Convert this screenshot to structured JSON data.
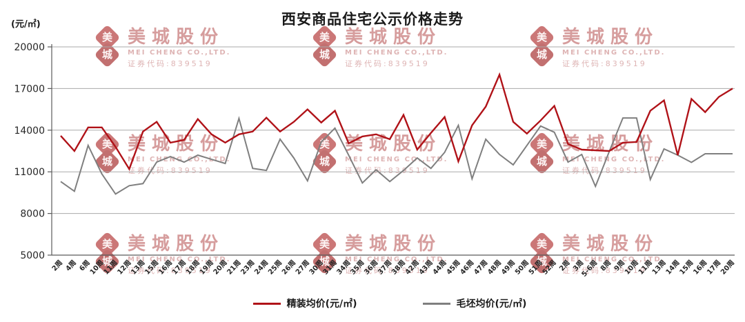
{
  "chart": {
    "title": "西安商品住宅公示价格走势",
    "y_axis_unit": "(元/㎡)"
  },
  "legend": {
    "items": [
      {
        "label": "精装均价(元/㎡)",
        "color": "#b01218"
      },
      {
        "label": "毛坯均价(元/㎡)",
        "color": "#7f7f7f"
      }
    ]
  },
  "watermark": {
    "logo_top_char": "美",
    "logo_bottom_char": "城",
    "company_cn": "美城股份",
    "company_en": "MEI CHENG CO.,LTD.",
    "stock_code": "证券代码:839519",
    "color": "#d08d8d"
  },
  "chart_data": {
    "type": "line",
    "title": "西安商品住宅公示价格走势",
    "xlabel": "",
    "ylabel": "(元/㎡)",
    "ylim": [
      5000,
      20000
    ],
    "yticks": [
      5000,
      8000,
      11000,
      14000,
      17000,
      20000
    ],
    "grid": true,
    "legend_position": "bottom",
    "categories": [
      "2周",
      "4周",
      "6周",
      "10周",
      "11周",
      "12周",
      "13周",
      "15周",
      "16周",
      "17周",
      "18周",
      "19周",
      "20周",
      "21周",
      "23周",
      "24周",
      "25周",
      "26周",
      "27周",
      "30周",
      "31周",
      "34周",
      "35周",
      "36周",
      "37周",
      "38周",
      "42周",
      "43周",
      "44周",
      "45周",
      "46周",
      "47周",
      "48周",
      "49周",
      "50周",
      "51周",
      "52周",
      "2周",
      "3周",
      "5-6周",
      "8周",
      "9周",
      "10周",
      "11周",
      "13周",
      "14周",
      "15周",
      "16周",
      "17周",
      "20周"
    ],
    "series": [
      {
        "name": "精装均价(元/㎡)",
        "color": "#b01218",
        "values": [
          13600,
          12500,
          14200,
          14200,
          12800,
          11200,
          13900,
          14600,
          13100,
          13300,
          14800,
          13700,
          13100,
          13700,
          13900,
          14900,
          13900,
          14600,
          15500,
          14550,
          15400,
          13050,
          13550,
          13700,
          13350,
          15100,
          12600,
          13800,
          14950,
          11750,
          14350,
          15700,
          18000,
          14600,
          13750,
          14700,
          15750,
          13000,
          12600,
          12550,
          12500,
          13100,
          13150,
          15400,
          16150,
          12200,
          16250,
          15300,
          16400,
          17000
        ]
      },
      {
        "name": "毛坯均价(元/㎡)",
        "color": "#7f7f7f",
        "values": [
          10300,
          9600,
          12900,
          10850,
          9400,
          10000,
          10150,
          11700,
          12100,
          11700,
          12200,
          11900,
          11600,
          14850,
          11250,
          11100,
          13350,
          12000,
          10350,
          13150,
          14150,
          12200,
          10200,
          11150,
          10300,
          11100,
          12000,
          11250,
          12400,
          14350,
          10500,
          13350,
          12250,
          11500,
          12900,
          14300,
          13850,
          11700,
          12250,
          9950,
          12450,
          14880,
          14880,
          10450,
          12650,
          12200,
          11680,
          12300,
          12300,
          12300
        ]
      }
    ]
  }
}
